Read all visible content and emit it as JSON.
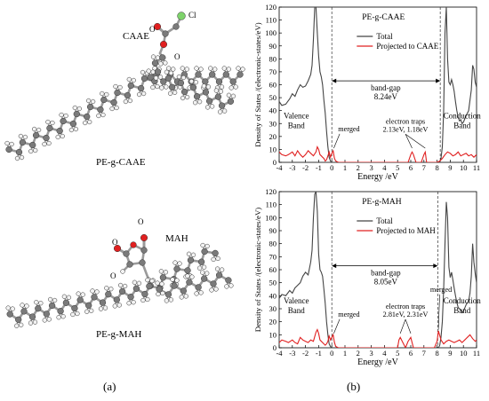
{
  "panel_labels": {
    "a": "(a)",
    "b": "(b)"
  },
  "molecules": {
    "top": {
      "group_label": "CAAE",
      "name": "PE-g-CAAE",
      "atoms": {
        "O1": "O",
        "O2": "O",
        "Cl": "Cl"
      },
      "colors": {
        "carbon": "#7a7a7a",
        "hydrogen": "#f2f2f2",
        "oxygen": "#e02020",
        "chlorine": "#7ed36b"
      }
    },
    "bottom": {
      "group_label": "MAH",
      "name": "PE-g-MAH",
      "atoms": {
        "O1": "O",
        "O2": "O",
        "O3": "O"
      },
      "colors": {
        "carbon": "#7a7a7a",
        "hydrogen": "#f2f2f2",
        "oxygen": "#e02020"
      }
    }
  },
  "chart_data": [
    {
      "type": "line",
      "title": "PE-g-CAAE",
      "xlabel": "Energy /eV",
      "ylabel": "Density of States /(electronic-states/eV)",
      "xlim": [
        -4,
        11
      ],
      "ylim": [
        0,
        120
      ],
      "xticks": [
        -4,
        -3,
        -2,
        -1,
        0,
        1,
        2,
        3,
        4,
        5,
        6,
        7,
        8,
        9,
        10,
        11
      ],
      "yticks": [
        0,
        10,
        20,
        30,
        40,
        50,
        60,
        70,
        80,
        90,
        100,
        110,
        120
      ],
      "legend": {
        "position": "top-right",
        "entries": [
          "Total",
          "Projected to CAAE"
        ]
      },
      "annotations": {
        "band_gap_label": "band-gap",
        "band_gap_value": "8.24eV",
        "traps_label": "electron traps",
        "traps_value": "2.13eV, 1.18eV",
        "merged": "merged",
        "valence_1": "Valence",
        "valence_2": "Band",
        "conduction_1": "Conduction",
        "conduction_2": "Band"
      },
      "vlines": [
        0.0,
        8.24
      ],
      "series": [
        {
          "name": "Total",
          "color": "#444444",
          "x": [
            -4,
            -3.8,
            -3.5,
            -3.2,
            -3,
            -2.8,
            -2.6,
            -2.4,
            -2.2,
            -2,
            -1.8,
            -1.6,
            -1.5,
            -1.4,
            -1.3,
            -1.2,
            -1.1,
            -1.0,
            -0.9,
            -0.8,
            -0.7,
            -0.6,
            -0.5,
            -0.4,
            -0.3,
            -0.2,
            -0.1,
            0.0
          ],
          "y": [
            47,
            44,
            45,
            49,
            53,
            51,
            56,
            60,
            58,
            59,
            63,
            68,
            75,
            95,
            120,
            120,
            100,
            82,
            70,
            66,
            60,
            48,
            38,
            24,
            12,
            4,
            1,
            0
          ]
        },
        {
          "name": "Total",
          "color": "#444444",
          "x": [
            8.2,
            8.3,
            8.4,
            8.5,
            8.6,
            8.7,
            8.8,
            8.9,
            9.0,
            9.1,
            9.2,
            9.3,
            9.4,
            9.5,
            9.6,
            9.7,
            9.8,
            9.9,
            10.0,
            10.2,
            10.4,
            10.5,
            10.6,
            10.7,
            10.8,
            10.9,
            11.0
          ],
          "y": [
            0,
            3,
            12,
            40,
            100,
            120,
            80,
            62,
            60,
            64,
            60,
            55,
            47,
            40,
            35,
            32,
            33,
            30,
            31,
            36,
            40,
            48,
            56,
            75,
            72,
            62,
            58
          ]
        },
        {
          "name": "Projected to CAAE",
          "color": "#e02020",
          "x": [
            -4,
            -3.8,
            -3.5,
            -3.3,
            -3,
            -2.8,
            -2.6,
            -2.4,
            -2.2,
            -2,
            -1.8,
            -1.6,
            -1.4,
            -1.2,
            -1.1,
            -1.0,
            -0.9,
            -0.8,
            -0.7,
            -0.6,
            -0.5,
            -0.4,
            -0.3,
            -0.2,
            -0.1,
            0.0,
            0.1,
            0.2,
            0.3,
            0.5,
            1,
            2,
            3,
            4,
            5,
            5.8,
            6.0,
            6.1,
            6.2,
            6.4,
            6.8,
            7.0,
            7.1,
            7.2,
            7.4,
            7.8,
            8.0,
            8.2,
            8.4,
            8.6,
            8.8,
            9.0,
            9.2,
            9.4,
            9.6,
            9.8,
            10.0,
            10.2,
            10.4,
            10.6,
            10.8,
            11.0
          ],
          "y": [
            8,
            6,
            5,
            6,
            8,
            5,
            9,
            6,
            4,
            6,
            9,
            7,
            5,
            8,
            12,
            10,
            6,
            5,
            4,
            3,
            1,
            2,
            5,
            8,
            4,
            7,
            9,
            3,
            1,
            0,
            0,
            0,
            0,
            0,
            0,
            0,
            6,
            8,
            6,
            0,
            0,
            6,
            8,
            0,
            0,
            0,
            0,
            1,
            3,
            6,
            8,
            7,
            5,
            6,
            8,
            5,
            6,
            7,
            5,
            6,
            4,
            6
          ]
        }
      ]
    },
    {
      "type": "line",
      "title": "PE-g-MAH",
      "xlabel": "Energy /eV",
      "ylabel": "Density of States /(electronic-states/eV)",
      "xlim": [
        -4,
        11
      ],
      "ylim": [
        0,
        120
      ],
      "xticks": [
        -4,
        -3,
        -2,
        -1,
        0,
        1,
        2,
        3,
        4,
        5,
        6,
        7,
        8,
        9,
        10,
        11
      ],
      "yticks": [
        0,
        10,
        20,
        30,
        40,
        50,
        60,
        70,
        80,
        90,
        100,
        110,
        120
      ],
      "legend": {
        "position": "top-right",
        "entries": [
          "Total",
          "Projected to MAH"
        ]
      },
      "annotations": {
        "band_gap_label": "band-gap",
        "band_gap_value": "8.05eV",
        "traps_label": "electron traps",
        "traps_value": "2.81eV, 2.31eV",
        "merged_1": "merged",
        "merged_2": "merged",
        "valence_1": "Valence",
        "valence_2": "Band",
        "conduction_1": "Conduction",
        "conduction_2": "Band"
      },
      "vlines": [
        0.0,
        8.05
      ],
      "series": [
        {
          "name": "Total",
          "color": "#444444",
          "x": [
            -4,
            -3.8,
            -3.5,
            -3.2,
            -3,
            -2.8,
            -2.6,
            -2.4,
            -2.2,
            -2,
            -1.8,
            -1.6,
            -1.5,
            -1.4,
            -1.3,
            -1.2,
            -1.1,
            -1.0,
            -0.9,
            -0.8,
            -0.7,
            -0.6,
            -0.5,
            -0.4,
            -0.3,
            -0.2,
            -0.1,
            0.0
          ],
          "y": [
            38,
            41,
            40,
            44,
            42,
            46,
            48,
            50,
            55,
            58,
            56,
            66,
            75,
            100,
            118,
            120,
            105,
            72,
            60,
            58,
            55,
            45,
            34,
            20,
            10,
            3,
            1,
            0
          ]
        },
        {
          "name": "Total",
          "color": "#444444",
          "x": [
            8.1,
            8.2,
            8.3,
            8.4,
            8.5,
            8.6,
            8.7,
            8.8,
            8.9,
            9.0,
            9.1,
            9.2,
            9.3,
            9.4,
            9.5,
            9.6,
            9.7,
            9.8,
            9.9,
            10.0,
            10.2,
            10.4,
            10.5,
            10.6,
            10.7,
            10.8,
            10.9,
            11.0
          ],
          "y": [
            0,
            2,
            8,
            20,
            45,
            80,
            112,
            100,
            62,
            54,
            58,
            52,
            46,
            40,
            35,
            31,
            30,
            29,
            27,
            28,
            33,
            36,
            42,
            55,
            80,
            66,
            57,
            50
          ]
        },
        {
          "name": "Projected to MAH",
          "color": "#e02020",
          "x": [
            -4,
            -3.8,
            -3.5,
            -3.3,
            -3,
            -2.8,
            -2.6,
            -2.4,
            -2.2,
            -2,
            -1.8,
            -1.6,
            -1.4,
            -1.2,
            -1.1,
            -1.0,
            -0.9,
            -0.8,
            -0.7,
            -0.6,
            -0.5,
            -0.4,
            -0.3,
            -0.2,
            -0.1,
            0.0,
            0.1,
            0.2,
            0.3,
            0.5,
            1,
            2,
            3,
            4,
            5,
            5.1,
            5.2,
            5.4,
            5.6,
            5.8,
            6.0,
            6.2,
            7,
            7.8,
            8.0,
            8.1,
            8.3,
            8.5,
            8.7,
            8.9,
            9.1,
            9.3,
            9.5,
            9.7,
            9.9,
            10.1,
            10.3,
            10.5,
            10.7,
            10.9,
            11.0
          ],
          "y": [
            4,
            6,
            5,
            4,
            6,
            4,
            3,
            8,
            6,
            5,
            4,
            6,
            5,
            12,
            14,
            11,
            6,
            5,
            4,
            3,
            2,
            3,
            5,
            9,
            6,
            8,
            10,
            4,
            1,
            0,
            0,
            0,
            0,
            0,
            0,
            6,
            8,
            4,
            0,
            5,
            8,
            0,
            0,
            0,
            5,
            13,
            6,
            3,
            5,
            6,
            5,
            4,
            5,
            6,
            4,
            6,
            8,
            10,
            7,
            5,
            6
          ]
        }
      ]
    }
  ]
}
